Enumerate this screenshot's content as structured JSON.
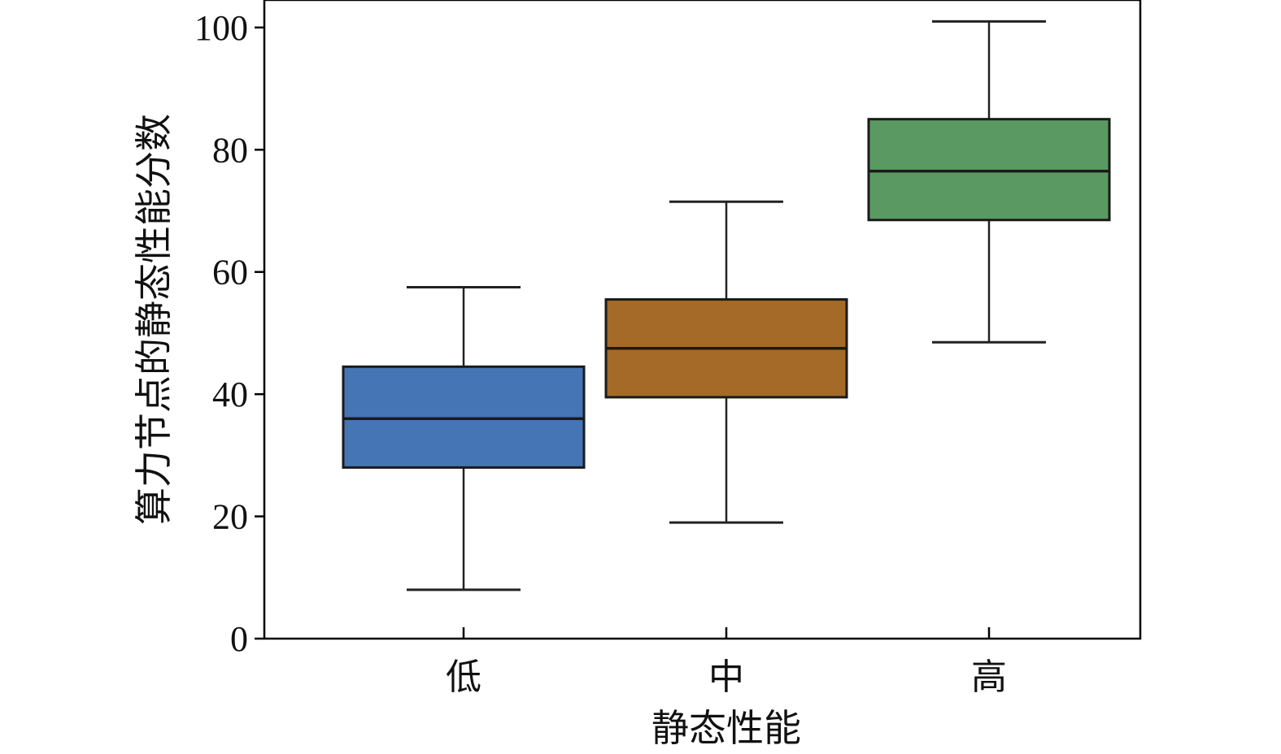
{
  "chart_data": {
    "type": "box",
    "xlabel": "静态性能",
    "ylabel": "算力节点的静态性能分数",
    "ylim": [
      0,
      104
    ],
    "yticks": [
      0,
      20,
      40,
      60,
      80,
      100
    ],
    "grid": false,
    "legend": "none",
    "categories": [
      "低",
      "中",
      "高"
    ],
    "boxes": [
      {
        "category": "低",
        "whisker_low": 8,
        "q1": 28,
        "median": 36,
        "q3": 44.5,
        "whisker_high": 57.5,
        "color": "#4675b5"
      },
      {
        "category": "中",
        "whisker_low": 19,
        "q1": 39.5,
        "median": 47.5,
        "q3": 55.5,
        "whisker_high": 71.5,
        "color": "#a56a27"
      },
      {
        "category": "高",
        "whisker_low": 48.5,
        "q1": 68.5,
        "median": 76.5,
        "q3": 85,
        "whisker_high": 101,
        "color": "#5a9a62"
      }
    ]
  }
}
